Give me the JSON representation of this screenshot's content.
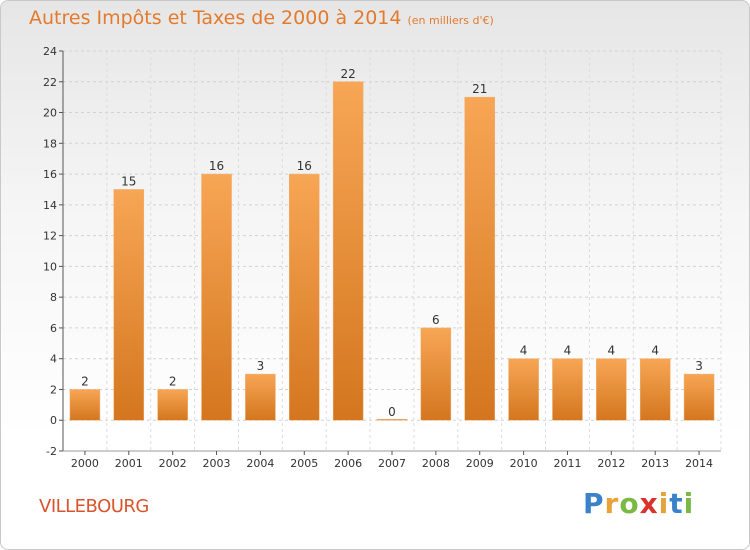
{
  "header": {
    "title": "Autres Impôts et Taxes de 2000 à 2014",
    "subtitle": "(en milliers d'€)"
  },
  "footer": {
    "location": "VILLEBOURG",
    "logo": [
      "P",
      "r",
      "o",
      "x",
      "i",
      "t",
      "i"
    ],
    "logo_colors": [
      "#3b83c9",
      "#e8a23a",
      "#7cb944",
      "#d8342c",
      "#e8a23a",
      "#3b83c9",
      "#7cb944"
    ]
  },
  "colors": {
    "bar": "#f5a14f",
    "bar_dark": "#d97a24",
    "title": "#e47a2c",
    "location": "#d9542c"
  },
  "chart_data": {
    "type": "bar",
    "categories": [
      "2000",
      "2001",
      "2002",
      "2003",
      "2004",
      "2005",
      "2006",
      "2007",
      "2008",
      "2009",
      "2010",
      "2011",
      "2012",
      "2013",
      "2014"
    ],
    "values": [
      2,
      15,
      2,
      16,
      3,
      16,
      22,
      0,
      6,
      21,
      4,
      4,
      4,
      4,
      3
    ],
    "data_labels": [
      "2",
      "15",
      "2",
      "16",
      "3",
      "16",
      "22",
      "0",
      "6",
      "21",
      "4",
      "4",
      "4",
      "4",
      "3"
    ],
    "y_ticks": [
      "-2",
      "0",
      "2",
      "4",
      "6",
      "8",
      "10",
      "12",
      "14",
      "16",
      "18",
      "20",
      "22",
      "24"
    ],
    "title": "Autres Impôts et Taxes de 2000 à 2014",
    "xlabel": "",
    "ylabel": "",
    "ylim": [
      -2,
      24
    ],
    "grid": true,
    "legend": "none"
  }
}
